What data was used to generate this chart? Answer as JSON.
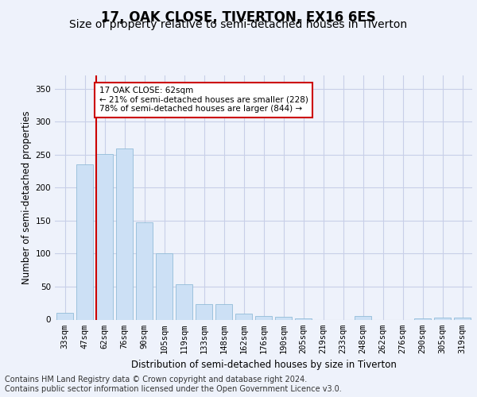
{
  "title": "17, OAK CLOSE, TIVERTON, EX16 6ES",
  "subtitle": "Size of property relative to semi-detached houses in Tiverton",
  "xlabel": "Distribution of semi-detached houses by size in Tiverton",
  "ylabel": "Number of semi-detached properties",
  "categories": [
    "33sqm",
    "47sqm",
    "62sqm",
    "76sqm",
    "90sqm",
    "105sqm",
    "119sqm",
    "133sqm",
    "148sqm",
    "162sqm",
    "176sqm",
    "190sqm",
    "205sqm",
    "219sqm",
    "233sqm",
    "248sqm",
    "262sqm",
    "276sqm",
    "290sqm",
    "305sqm",
    "319sqm"
  ],
  "values": [
    10,
    235,
    251,
    259,
    148,
    101,
    54,
    23,
    23,
    9,
    5,
    4,
    2,
    0,
    0,
    6,
    0,
    0,
    2,
    3,
    3
  ],
  "bar_color": "#cce0f5",
  "bar_edge_color": "#92bcd8",
  "highlight_line_color": "#cc0000",
  "highlight_index": 2,
  "annotation_text": "17 OAK CLOSE: 62sqm\n← 21% of semi-detached houses are smaller (228)\n78% of semi-detached houses are larger (844) →",
  "annotation_box_facecolor": "#ffffff",
  "annotation_box_edgecolor": "#cc0000",
  "ylim": [
    0,
    370
  ],
  "yticks": [
    0,
    50,
    100,
    150,
    200,
    250,
    300,
    350
  ],
  "footer_text": "Contains HM Land Registry data © Crown copyright and database right 2024.\nContains public sector information licensed under the Open Government Licence v3.0.",
  "background_color": "#eef2fb",
  "grid_color": "#c8cfe8",
  "title_fontsize": 12,
  "subtitle_fontsize": 10,
  "axis_label_fontsize": 8.5,
  "tick_fontsize": 7.5,
  "footer_fontsize": 7
}
